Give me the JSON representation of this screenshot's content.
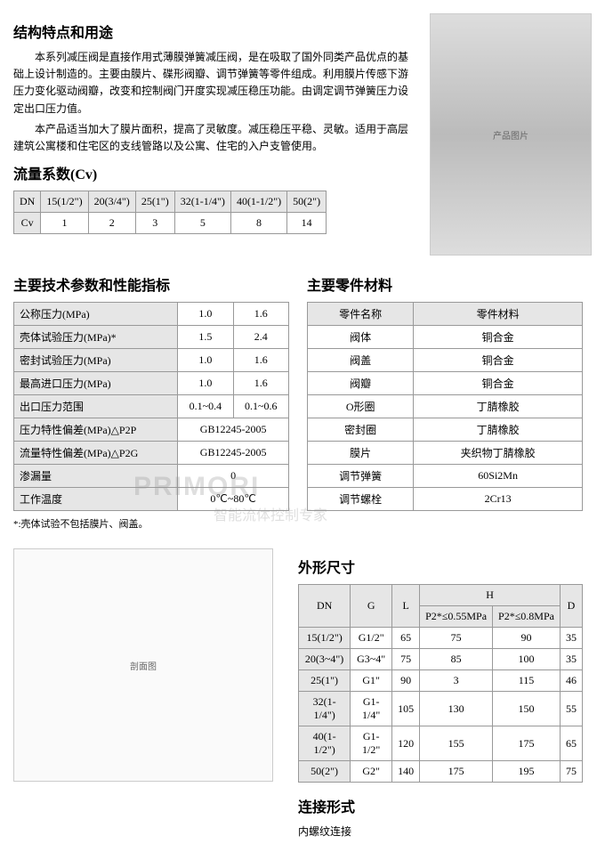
{
  "section1": {
    "title": "结构特点和用途",
    "para1": "本系列减压阀是直接作用式薄膜弹簧减压阀，是在吸取了国外同类产品优点的基础上设计制造的。主要由膜片、碟形阀瓣、调节弹簧等零件组成。利用膜片传感下游压力变化驱动阀瓣，改变和控制阀门开度实现减压稳压功能。由调定调节弹簧压力设定出口压力值。",
    "para2": "本产品适当加大了膜片面积，提高了灵敏度。减压稳压平稳、灵敏。适用于高层建筑公寓楼和住宅区的支线管路以及公寓、住宅的入户支管使用。"
  },
  "product_image_label": "产品图片",
  "cv_section": {
    "title": "流量系数(Cv)",
    "headers": [
      "DN",
      "15(1/2\")",
      "20(3/4\")",
      "25(1\")",
      "32(1-1/4\")",
      "40(1-1/2\")",
      "50(2\")"
    ],
    "row_label": "Cv",
    "values": [
      "1",
      "2",
      "3",
      "5",
      "8",
      "14"
    ]
  },
  "specs": {
    "title": "主要技术参数和性能指标",
    "rows": [
      {
        "label": "公称压力(MPa)",
        "v1": "1.0",
        "v2": "1.6"
      },
      {
        "label": "壳体试验压力(MPa)*",
        "v1": "1.5",
        "v2": "2.4"
      },
      {
        "label": "密封试验压力(MPa)",
        "v1": "1.0",
        "v2": "1.6"
      },
      {
        "label": "最高进口压力(MPa)",
        "v1": "1.0",
        "v2": "1.6"
      },
      {
        "label": "出口压力范围",
        "v1": "0.1~0.4",
        "v2": "0.1~0.6"
      },
      {
        "label": "压力特性偏差(MPa)△P2P",
        "v1": "GB12245-2005",
        "v2": ""
      },
      {
        "label": "流量特性偏差(MPa)△P2G",
        "v1": "GB12245-2005",
        "v2": ""
      },
      {
        "label": "渗漏量",
        "v1": "0",
        "v2": ""
      },
      {
        "label": "工作温度",
        "v1": "0℃~80℃",
        "v2": ""
      }
    ],
    "note": "*:壳体试验不包括膜片、阀盖。"
  },
  "materials": {
    "title": "主要零件材料",
    "header1": "零件名称",
    "header2": "零件材料",
    "rows": [
      {
        "name": "阀体",
        "mat": "铜合金"
      },
      {
        "name": "阀盖",
        "mat": "铜合金"
      },
      {
        "name": "阀瓣",
        "mat": "铜合金"
      },
      {
        "name": "O形圈",
        "mat": "丁腈橡胶"
      },
      {
        "name": "密封圈",
        "mat": "丁腈橡胶"
      },
      {
        "name": "膜片",
        "mat": "夹织物丁腈橡胶"
      },
      {
        "name": "调节弹簧",
        "mat": "60Si2Mn"
      },
      {
        "name": "调节螺栓",
        "mat": "2Cr13"
      }
    ]
  },
  "dimensions": {
    "title": "外形尺寸",
    "headers": {
      "dn": "DN",
      "g": "G",
      "l": "L",
      "h": "H",
      "h1": "P2*≤0.55MPa",
      "h2": "P2*≤0.8MPa",
      "d": "D"
    },
    "rows": [
      {
        "dn": "15(1/2\")",
        "g": "G1/2\"",
        "l": "65",
        "h1": "75",
        "h2": "90",
        "d": "35"
      },
      {
        "dn": "20(3~4\")",
        "g": "G3~4\"",
        "l": "75",
        "h1": "85",
        "h2": "100",
        "d": "35"
      },
      {
        "dn": "25(1\")",
        "g": "G1\"",
        "l": "90",
        "h1": "3",
        "h2": "115",
        "d": "46"
      },
      {
        "dn": "32(1-1/4\")",
        "g": "G1-1/4\"",
        "l": "105",
        "h1": "130",
        "h2": "150",
        "d": "55"
      },
      {
        "dn": "40(1-1/2\")",
        "g": "G1-1/2\"",
        "l": "120",
        "h1": "155",
        "h2": "175",
        "d": "65"
      },
      {
        "dn": "50(2\")",
        "g": "G2\"",
        "l": "140",
        "h1": "175",
        "h2": "195",
        "d": "75"
      }
    ]
  },
  "connection": {
    "title": "连接形式",
    "text": "内螺纹连接"
  },
  "diagram_label": "剖面图",
  "watermark": "PRIMORI",
  "watermark2": "智能流体控制专家"
}
